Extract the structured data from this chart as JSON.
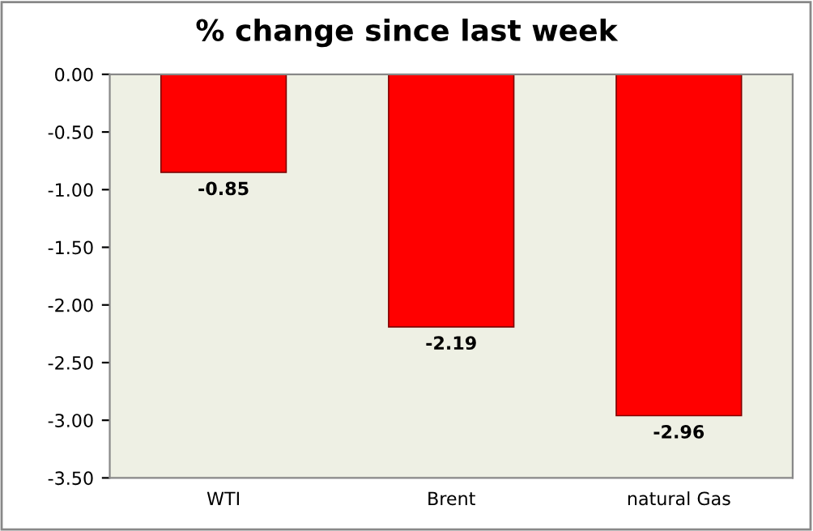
{
  "chart_data": {
    "type": "bar",
    "title": "% change since last week",
    "categories": [
      "WTI",
      "Brent",
      "natural Gas"
    ],
    "values": [
      -0.85,
      -2.19,
      -2.96
    ],
    "color": "#ff0000",
    "ylim": [
      -3.5,
      0
    ],
    "yticks": [
      {
        "value": -3.5,
        "label": "-3.50"
      },
      {
        "value": -3.0,
        "label": "-3.00"
      },
      {
        "value": -2.5,
        "label": "-2.50"
      },
      {
        "value": -2.0,
        "label": "-2.00"
      },
      {
        "value": -1.5,
        "label": "-1.50"
      },
      {
        "value": -1.0,
        "label": "-1.00"
      },
      {
        "value": -0.5,
        "label": "-0.50"
      },
      {
        "value": 0,
        "label": "0.00"
      }
    ],
    "data_labels": true,
    "grid": false,
    "legend": false
  }
}
